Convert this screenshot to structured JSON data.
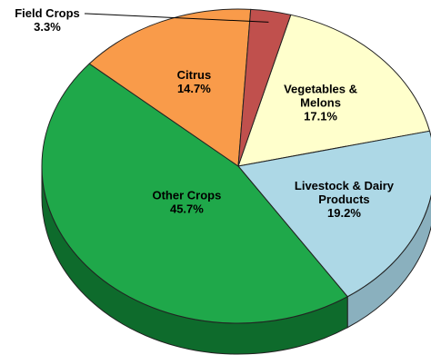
{
  "chart_data": {
    "type": "pie",
    "style": "3d",
    "slices": [
      {
        "label_lines": [
          "Vegetables &",
          "Melons"
        ],
        "value": 17.1,
        "value_label": "17.1%",
        "color": "#FFFFCC",
        "side_color": "#D8D8A8"
      },
      {
        "label_lines": [
          "Livestock & Dairy",
          "Products"
        ],
        "value": 19.2,
        "value_label": "19.2%",
        "color": "#ADD8E6",
        "side_color": "#8AB0BE"
      },
      {
        "label_lines": [
          "Other Crops"
        ],
        "value": 45.7,
        "value_label": "45.7%",
        "color": "#1FA84A",
        "side_color": "#0E6B2C"
      },
      {
        "label_lines": [
          "Citrus"
        ],
        "value": 14.7,
        "value_label": "14.7%",
        "color": "#F99B4A",
        "side_color": "#C2712E"
      },
      {
        "label_lines": [
          "Field Crops"
        ],
        "value": 3.3,
        "value_label": "3.3%",
        "color": "#C0504D",
        "side_color": "#8B3533"
      }
    ]
  }
}
